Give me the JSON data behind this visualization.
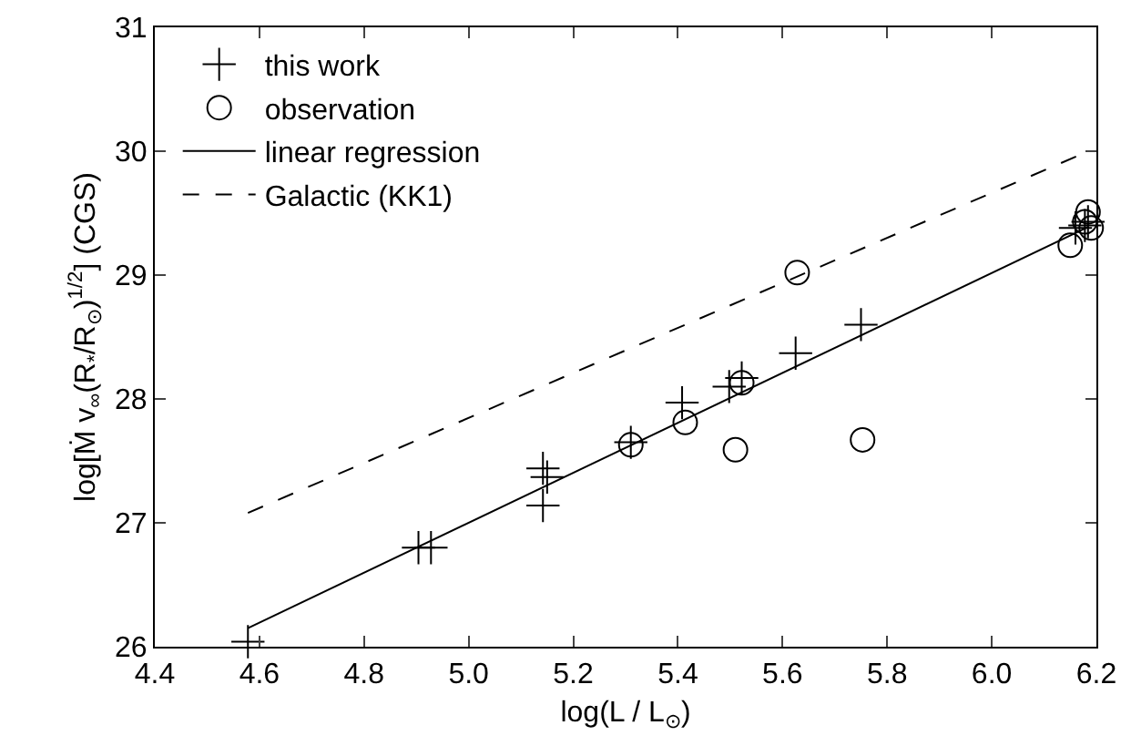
{
  "chart_data": {
    "type": "scatter",
    "xlabel": "log(L / L$_{⊙}$)",
    "ylabel": "log[Ṁ v$_{∞}$(R$_{*}$/R$_{⊙}$)$^{1/2}$] (CGS)",
    "xlim": [
      4.4,
      6.2
    ],
    "ylim": [
      26,
      31
    ],
    "xticks": [
      4.4,
      4.6,
      4.8,
      {
        "value": 5,
        "label": "5.0"
      },
      5.2,
      5.4,
      5.6,
      5.8,
      {
        "value": 6,
        "label": "6.0"
      },
      6.2
    ],
    "yticks": [
      26,
      27,
      28,
      29,
      30,
      31
    ],
    "legend": "top left",
    "series": [
      {
        "name": "this work",
        "marker": "cross",
        "color": "#000000",
        "x": [
          4.578,
          4.904,
          4.928,
          5.142,
          5.15,
          5.142,
          5.31,
          5.408,
          5.498,
          5.522,
          5.625,
          5.75,
          6.16,
          6.178,
          6.184
        ],
        "values": [
          26.04,
          26.8,
          26.8,
          27.44,
          27.37,
          27.14,
          27.65,
          27.97,
          28.1,
          28.17,
          28.37,
          28.6,
          29.38,
          29.4,
          29.43
        ]
      },
      {
        "name": "observation",
        "marker": "circle",
        "color": "#000000",
        "x": [
          5.628,
          5.31,
          5.414,
          5.51,
          5.522,
          5.753,
          6.15,
          6.178,
          6.184,
          6.19
        ],
        "values": [
          29.02,
          27.63,
          27.81,
          27.59,
          28.13,
          27.67,
          29.24,
          29.43,
          29.51,
          29.38
        ]
      },
      {
        "name": "linear regression",
        "type": "line",
        "line_style": "solid",
        "color": "#000000",
        "x": [
          4.578,
          6.185
        ],
        "values": [
          26.15,
          29.39
        ]
      },
      {
        "name": "Galactic (KK1)",
        "type": "line",
        "line_style": "dashed",
        "color": "#000000",
        "x": [
          4.578,
          6.185
        ],
        "values": [
          27.08,
          30.0
        ]
      }
    ]
  }
}
